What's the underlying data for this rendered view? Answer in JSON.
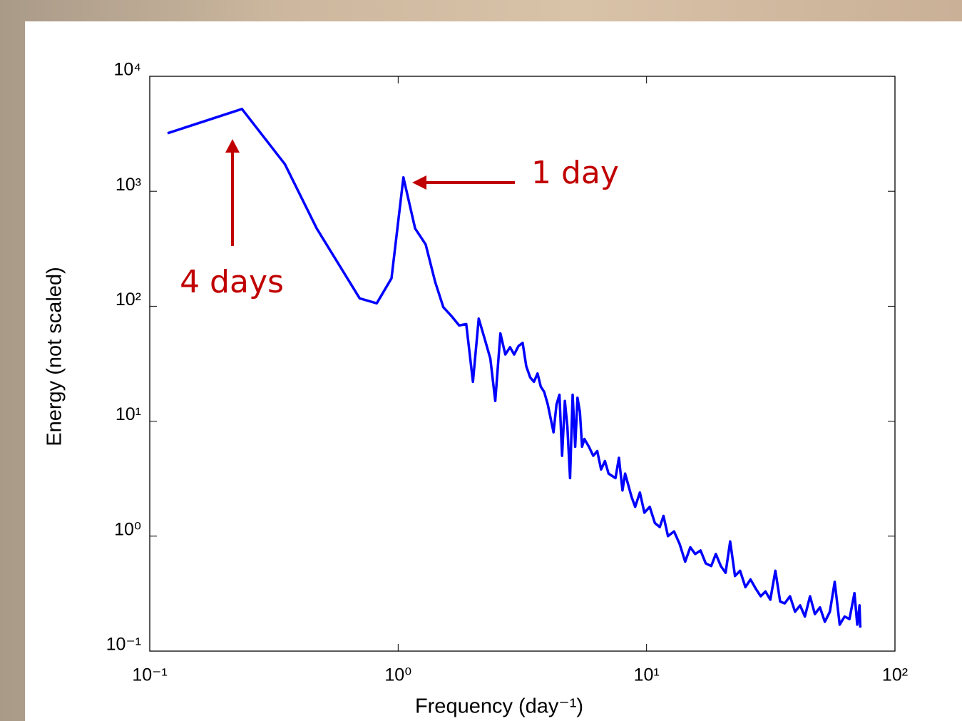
{
  "chart_data": {
    "type": "line",
    "xlabel": "Frequency (day⁻¹)",
    "ylabel": "Energy (not scaled)",
    "log_x": true,
    "log_y": true,
    "color": "#0000ff",
    "annotation_color": "#c00000",
    "annotations": [
      "4 days",
      "1 day"
    ],
    "x": [
      0.118,
      0.235,
      0.35,
      0.47,
      0.7,
      0.82,
      0.94,
      1.05,
      1.17,
      1.29,
      1.41,
      1.52,
      1.64,
      1.76,
      1.88,
      2.0,
      2.11,
      2.23,
      2.35,
      2.46,
      2.58,
      2.7,
      2.82,
      2.93,
      3.05,
      3.17,
      3.28,
      3.4,
      3.52,
      3.64,
      3.75,
      3.87,
      4.0,
      4.22,
      4.34,
      4.46,
      4.57,
      4.69,
      4.8,
      4.92,
      5.04,
      5.16,
      5.27,
      5.39,
      5.5,
      5.62,
      5.86,
      6.1,
      6.33,
      6.56,
      6.8,
      7.03,
      7.5,
      7.74,
      8.0,
      8.2,
      8.7,
      9.0,
      9.4,
      9.8,
      10.3,
      10.8,
      11.3,
      11.7,
      12.2,
      12.9,
      13.6,
      14.3,
      15.0,
      15.7,
      16.5,
      17.3,
      18.2,
      19.0,
      19.9,
      20.8,
      21.7,
      22.7,
      23.8,
      25,
      26.2,
      27.5,
      28.8,
      30.1,
      31.5,
      33,
      34.5,
      36,
      37.8,
      39.6,
      41.5,
      43.4,
      45.5,
      47.6,
      49.9,
      52.2,
      54.7,
      57.2,
      59.9,
      62.7,
      65.6,
      68.7,
      70.5,
      72,
      72.5
    ],
    "values": [
      3200,
      5200,
      1720,
      475,
      117,
      106,
      175,
      1320,
      475,
      345,
      162,
      98,
      82,
      68,
      70,
      22,
      78,
      52,
      35,
      15,
      58,
      38,
      44,
      38,
      45,
      48,
      30,
      24,
      22,
      26,
      20,
      18,
      14,
      8,
      14,
      17,
      5,
      15,
      9,
      3.2,
      17,
      6,
      16,
      12,
      6,
      7,
      6,
      5,
      5.5,
      3.8,
      4.5,
      3.5,
      3.2,
      4.8,
      2.5,
      3.5,
      2.2,
      1.8,
      2.4,
      1.6,
      1.8,
      1.3,
      1.2,
      1.5,
      1.0,
      1.1,
      0.85,
      0.6,
      0.8,
      0.7,
      0.75,
      0.58,
      0.55,
      0.7,
      0.55,
      0.48,
      0.9,
      0.45,
      0.5,
      0.36,
      0.42,
      0.35,
      0.3,
      0.33,
      0.28,
      0.5,
      0.27,
      0.26,
      0.3,
      0.22,
      0.25,
      0.2,
      0.3,
      0.21,
      0.24,
      0.18,
      0.22,
      0.4,
      0.17,
      0.2,
      0.19,
      0.32,
      0.17,
      0.25,
      0.16
    ],
    "xlim": [
      0.1,
      100
    ],
    "ylim": [
      0.1,
      10000
    ],
    "xticks": [
      {
        "value": 0.1,
        "label": "10⁻¹"
      },
      {
        "value": 1,
        "label": "10⁰"
      },
      {
        "value": 10,
        "label": "10¹"
      },
      {
        "value": 100,
        "label": "10²"
      }
    ],
    "yticks": [
      {
        "value": 0.1,
        "label": "10⁻¹"
      },
      {
        "value": 1,
        "label": "10⁰"
      },
      {
        "value": 10,
        "label": "10¹"
      },
      {
        "value": 100,
        "label": "10²"
      },
      {
        "value": 1000,
        "label": "10³"
      },
      {
        "value": 10000,
        "label": "10⁴"
      }
    ]
  }
}
